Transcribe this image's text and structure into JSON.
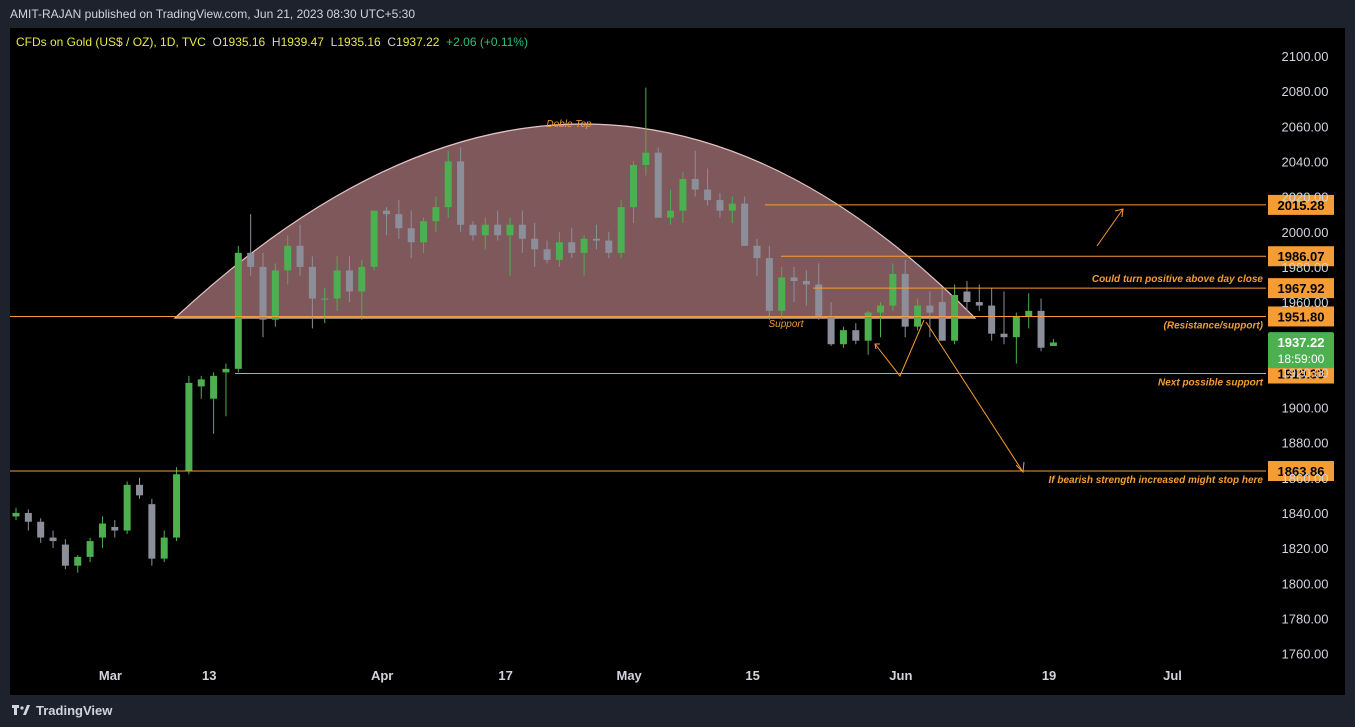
{
  "header": {
    "published": "AMIT-RAJAN published on TradingView.com, Jun 21, 2023 08:30 UTC+5:30"
  },
  "legend": {
    "symbol": "CFDs on Gold (US$ / OZ), 1D, TVC",
    "open_label": "O",
    "open": "1935.16",
    "high_label": "H",
    "high": "1939.47",
    "low_label": "L",
    "low": "1935.16",
    "close_label": "C",
    "close": "1937.22",
    "change": "+2.06 (+0.11%)"
  },
  "footer": {
    "brand": "TradingView"
  },
  "colors": {
    "up": "#4caf50",
    "down": "#8c8f9a",
    "level": "#f59c34",
    "dome": "#b07a80",
    "price_tag": "#4caf50"
  },
  "chart_data": {
    "type": "candlestick",
    "title": "CFDs on Gold (US$ / OZ), 1D, TVC",
    "ylim": [
      1750,
      2110
    ],
    "yticks": [
      "2100.00",
      "2080.00",
      "2060.00",
      "2040.00",
      "2020.00",
      "2000.00",
      "1980.00",
      "1960.00",
      "1940.00",
      "1920.00",
      "1900.00",
      "1880.00",
      "1860.00",
      "1840.00",
      "1820.00",
      "1800.00",
      "1780.00",
      "1760.00"
    ],
    "xlabels": [
      {
        "label": "Mar",
        "bar": 7
      },
      {
        "label": "13",
        "bar": 15
      },
      {
        "label": "Apr",
        "bar": 29
      },
      {
        "label": "17",
        "bar": 39
      },
      {
        "label": "May",
        "bar": 49
      },
      {
        "label": "15",
        "bar": 59
      },
      {
        "label": "Jun",
        "bar": 71
      },
      {
        "label": "19",
        "bar": 83
      },
      {
        "label": "Jul",
        "bar": 93
      }
    ],
    "candles": [
      [
        1838,
        1843,
        1836,
        1840
      ],
      [
        1840,
        1842,
        1830,
        1835
      ],
      [
        1835,
        1837,
        1823,
        1826
      ],
      [
        1826,
        1830,
        1820,
        1824
      ],
      [
        1822,
        1825,
        1808,
        1810
      ],
      [
        1810,
        1816,
        1806,
        1815
      ],
      [
        1815,
        1826,
        1812,
        1824
      ],
      [
        1826,
        1838,
        1820,
        1834
      ],
      [
        1832,
        1836,
        1826,
        1830
      ],
      [
        1830,
        1858,
        1828,
        1856
      ],
      [
        1856,
        1860,
        1848,
        1850
      ],
      [
        1845,
        1848,
        1810,
        1814
      ],
      [
        1814,
        1830,
        1812,
        1826
      ],
      [
        1826,
        1866,
        1824,
        1862
      ],
      [
        1864,
        1918,
        1862,
        1914
      ],
      [
        1912,
        1918,
        1905,
        1916
      ],
      [
        1905,
        1920,
        1885,
        1918
      ],
      [
        1920,
        1925,
        1895,
        1922
      ],
      [
        1922,
        1992,
        1920,
        1988
      ],
      [
        1988,
        2010,
        1975,
        1980
      ],
      [
        1980,
        1988,
        1940,
        1950
      ],
      [
        1950,
        1982,
        1946,
        1978
      ],
      [
        1978,
        1998,
        1970,
        1992
      ],
      [
        1992,
        2004,
        1975,
        1980
      ],
      [
        1980,
        1986,
        1945,
        1962
      ],
      [
        1962,
        1968,
        1948,
        1962
      ],
      [
        1962,
        1986,
        1955,
        1978
      ],
      [
        1978,
        1986,
        1960,
        1966
      ],
      [
        1966,
        1984,
        1950,
        1980
      ],
      [
        1980,
        2012,
        1978,
        2012
      ],
      [
        2012,
        2014,
        1998,
        2010
      ],
      [
        2010,
        2018,
        1996,
        2002
      ],
      [
        2002,
        2012,
        1985,
        1994
      ],
      [
        1994,
        2008,
        1988,
        2006
      ],
      [
        2006,
        2020,
        2000,
        2014
      ],
      [
        2014,
        2046,
        2008,
        2040
      ],
      [
        2040,
        2048,
        2000,
        2004
      ],
      [
        2004,
        2006,
        1995,
        1998
      ],
      [
        1998,
        2008,
        1990,
        2004
      ],
      [
        2004,
        2012,
        1995,
        1998
      ],
      [
        1998,
        2008,
        1975,
        2004
      ],
      [
        2004,
        2012,
        1988,
        1996
      ],
      [
        1996,
        2005,
        1980,
        1990
      ],
      [
        1990,
        1995,
        1982,
        1984
      ],
      [
        1984,
        2000,
        1980,
        1994
      ],
      [
        1994,
        2002,
        1985,
        1988
      ],
      [
        1988,
        1998,
        1975,
        1996
      ],
      [
        1996,
        2004,
        1990,
        1995
      ],
      [
        1995,
        2000,
        1985,
        1988
      ],
      [
        1988,
        2018,
        1985,
        2014
      ],
      [
        2014,
        2040,
        2005,
        2038
      ],
      [
        2038,
        2082,
        2032,
        2045
      ],
      [
        2045,
        2048,
        2010,
        2008
      ],
      [
        2008,
        2024,
        2004,
        2012
      ],
      [
        2012,
        2034,
        2005,
        2030
      ],
      [
        2030,
        2046,
        2020,
        2024
      ],
      [
        2024,
        2036,
        2015,
        2018
      ],
      [
        2018,
        2022,
        2008,
        2012
      ],
      [
        2012,
        2020,
        2005,
        2016
      ],
      [
        2016,
        2020,
        1992,
        1992
      ],
      [
        1992,
        1996,
        1975,
        1985
      ],
      [
        1985,
        1992,
        1950,
        1955
      ],
      [
        1955,
        1980,
        1950,
        1974
      ],
      [
        1974,
        1980,
        1960,
        1972
      ],
      [
        1972,
        1978,
        1958,
        1970
      ],
      [
        1970,
        1982,
        1950,
        1952
      ],
      [
        1952,
        1960,
        1935,
        1936
      ],
      [
        1936,
        1946,
        1934,
        1944
      ],
      [
        1944,
        1948,
        1936,
        1938
      ],
      [
        1938,
        1955,
        1930,
        1954
      ],
      [
        1954,
        1960,
        1940,
        1958
      ],
      [
        1958,
        1982,
        1955,
        1976
      ],
      [
        1976,
        1984,
        1940,
        1946
      ],
      [
        1946,
        1962,
        1944,
        1958
      ],
      [
        1958,
        1966,
        1940,
        1954
      ],
      [
        1960,
        1968,
        1938,
        1938
      ],
      [
        1938,
        1970,
        1936,
        1964
      ],
      [
        1966,
        1972,
        1955,
        1960
      ],
      [
        1960,
        1970,
        1955,
        1958
      ],
      [
        1958,
        1968,
        1938,
        1942
      ],
      [
        1942,
        1966,
        1936,
        1940
      ],
      [
        1940,
        1954,
        1925,
        1952
      ],
      [
        1952,
        1965,
        1945,
        1955
      ],
      [
        1955,
        1962,
        1932,
        1934
      ],
      [
        1935,
        1939,
        1935,
        1937
      ]
    ],
    "levels": [
      {
        "price": 2015.28,
        "label": "2015.28",
        "note": ""
      },
      {
        "price": 1986.07,
        "label": "1986.07",
        "note": ""
      },
      {
        "price": 1967.92,
        "label": "1967.92",
        "note": "Could turn positive above day close"
      },
      {
        "price": 1951.8,
        "label": "1951.80",
        "note": "(Resistance/support)"
      },
      {
        "price": 1919.33,
        "label": "1919.33",
        "note": "Next possible support"
      },
      {
        "price": 1863.86,
        "label": "1863.86",
        "note": "If bearish strength increased might stop here"
      }
    ],
    "annotations": {
      "dome": "Doble Top",
      "support": "Support"
    },
    "last_price": {
      "value": "1937.22",
      "countdown": "18:59:00"
    }
  }
}
